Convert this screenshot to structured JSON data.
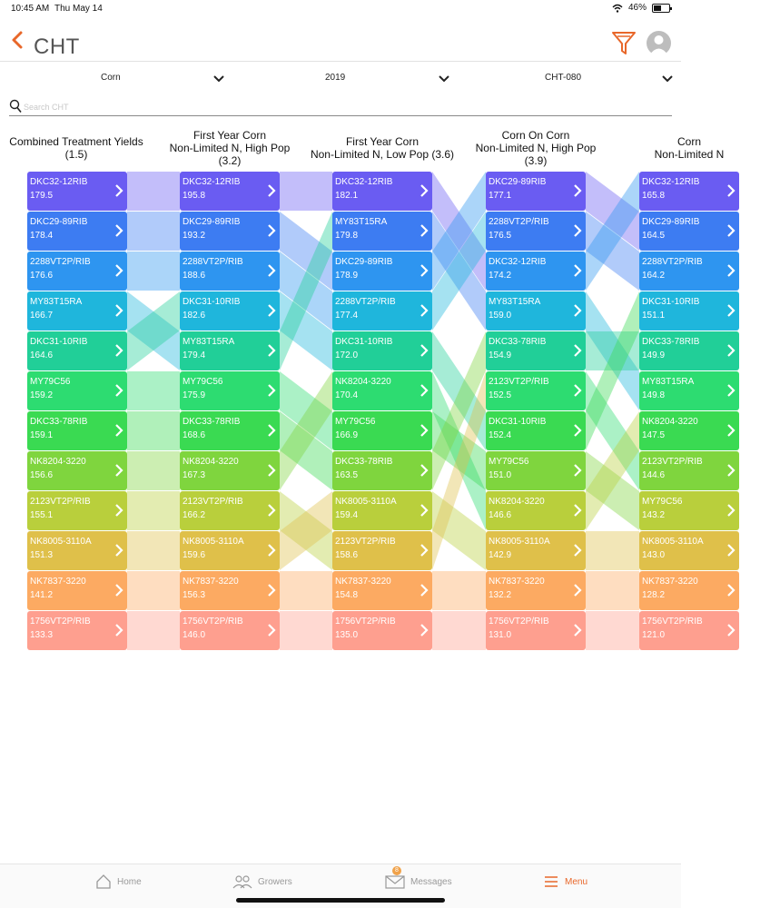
{
  "status_bar": {
    "time": "10:45 AM",
    "date": "Thu May 14",
    "battery": "46%"
  },
  "header": {
    "title": "CHT"
  },
  "selectors": [
    {
      "value": "Corn"
    },
    {
      "value": "2019"
    },
    {
      "value": "CHT-080"
    }
  ],
  "search": {
    "placeholder": "Search CHT",
    "value": ""
  },
  "colors": {
    "accent": "#e8672a",
    "rank": [
      "#6a5cf2",
      "#3d7cf2",
      "#2e95f0",
      "#1fb6dc",
      "#21cf98",
      "#2ddc71",
      "#3ada52",
      "#7fd53e",
      "#b9cf3c",
      "#dfc04a",
      "#fcaa62",
      "#fe9f8f"
    ]
  },
  "columns": [
    {
      "title_lines": [
        "Combined Treatment Yields",
        "(1.5)"
      ],
      "items": [
        {
          "name": "DKC32-12RIB",
          "value": "179.5"
        },
        {
          "name": "DKC29-89RIB",
          "value": "178.4"
        },
        {
          "name": "2288VT2P/RIB",
          "value": "176.6"
        },
        {
          "name": "MY83T15RA",
          "value": "166.7"
        },
        {
          "name": "DKC31-10RIB",
          "value": "164.6"
        },
        {
          "name": "MY79C56",
          "value": "159.2"
        },
        {
          "name": "DKC33-78RIB",
          "value": "159.1"
        },
        {
          "name": "NK8204-3220",
          "value": "156.6"
        },
        {
          "name": "2123VT2P/RIB",
          "value": "155.1"
        },
        {
          "name": "NK8005-3110A",
          "value": "151.3"
        },
        {
          "name": "NK7837-3220",
          "value": "141.2"
        },
        {
          "name": "1756VT2P/RIB",
          "value": "133.3"
        }
      ]
    },
    {
      "title_lines": [
        "First Year Corn",
        "Non-Limited N, High Pop",
        "(3.2)"
      ],
      "items": [
        {
          "name": "DKC32-12RIB",
          "value": "195.8"
        },
        {
          "name": "DKC29-89RIB",
          "value": "193.2"
        },
        {
          "name": "2288VT2P/RIB",
          "value": "188.6"
        },
        {
          "name": "DKC31-10RIB",
          "value": "182.6"
        },
        {
          "name": "MY83T15RA",
          "value": "179.4"
        },
        {
          "name": "MY79C56",
          "value": "175.9"
        },
        {
          "name": "DKC33-78RIB",
          "value": "168.6"
        },
        {
          "name": "NK8204-3220",
          "value": "167.3"
        },
        {
          "name": "2123VT2P/RIB",
          "value": "166.2"
        },
        {
          "name": "NK8005-3110A",
          "value": "159.6"
        },
        {
          "name": "NK7837-3220",
          "value": "156.3"
        },
        {
          "name": "1756VT2P/RIB",
          "value": "146.0"
        }
      ]
    },
    {
      "title_lines": [
        "First Year Corn",
        "Non-Limited N, Low Pop (3.6)"
      ],
      "items": [
        {
          "name": "DKC32-12RIB",
          "value": "182.1"
        },
        {
          "name": "MY83T15RA",
          "value": "179.8"
        },
        {
          "name": "DKC29-89RIB",
          "value": "178.9"
        },
        {
          "name": "2288VT2P/RIB",
          "value": "177.4"
        },
        {
          "name": "DKC31-10RIB",
          "value": "172.0"
        },
        {
          "name": "NK8204-3220",
          "value": "170.4"
        },
        {
          "name": "MY79C56",
          "value": "166.9"
        },
        {
          "name": "DKC33-78RIB",
          "value": "163.5"
        },
        {
          "name": "NK8005-3110A",
          "value": "159.4"
        },
        {
          "name": "2123VT2P/RIB",
          "value": "158.6"
        },
        {
          "name": "NK7837-3220",
          "value": "154.8"
        },
        {
          "name": "1756VT2P/RIB",
          "value": "135.0"
        }
      ]
    },
    {
      "title_lines": [
        "Corn On Corn",
        "Non-Limited N, High Pop",
        "(3.9)"
      ],
      "items": [
        {
          "name": "DKC29-89RIB",
          "value": "177.1"
        },
        {
          "name": "2288VT2P/RIB",
          "value": "176.5"
        },
        {
          "name": "DKC32-12RIB",
          "value": "174.2"
        },
        {
          "name": "MY83T15RA",
          "value": "159.0"
        },
        {
          "name": "DKC33-78RIB",
          "value": "154.9"
        },
        {
          "name": "2123VT2P/RIB",
          "value": "152.5"
        },
        {
          "name": "DKC31-10RIB",
          "value": "152.4"
        },
        {
          "name": "MY79C56",
          "value": "151.0"
        },
        {
          "name": "NK8204-3220",
          "value": "146.6"
        },
        {
          "name": "NK8005-3110A",
          "value": "142.9"
        },
        {
          "name": "NK7837-3220",
          "value": "132.2"
        },
        {
          "name": "1756VT2P/RIB",
          "value": "131.0"
        }
      ]
    },
    {
      "title_lines": [
        "Corn",
        "Non-Limited N"
      ],
      "items": [
        {
          "name": "DKC32-12RIB",
          "value": "165.8"
        },
        {
          "name": "DKC29-89RIB",
          "value": "164.5"
        },
        {
          "name": "2288VT2P/RIB",
          "value": "164.2"
        },
        {
          "name": "DKC31-10RIB",
          "value": "151.1"
        },
        {
          "name": "DKC33-78RIB",
          "value": "149.9"
        },
        {
          "name": "MY83T15RA",
          "value": "149.8"
        },
        {
          "name": "NK8204-3220",
          "value": "147.5"
        },
        {
          "name": "2123VT2P/RIB",
          "value": "144.6"
        },
        {
          "name": "MY79C56",
          "value": "143.2"
        },
        {
          "name": "NK8005-3110A",
          "value": "143.0"
        },
        {
          "name": "NK7837-3220",
          "value": "128.2"
        },
        {
          "name": "1756VT2P/RIB",
          "value": "121.0"
        }
      ]
    }
  ],
  "tab_bar": {
    "home": "Home",
    "growers": "Growers",
    "messages": "Messages",
    "messages_badge": "8",
    "menu": "Menu"
  }
}
